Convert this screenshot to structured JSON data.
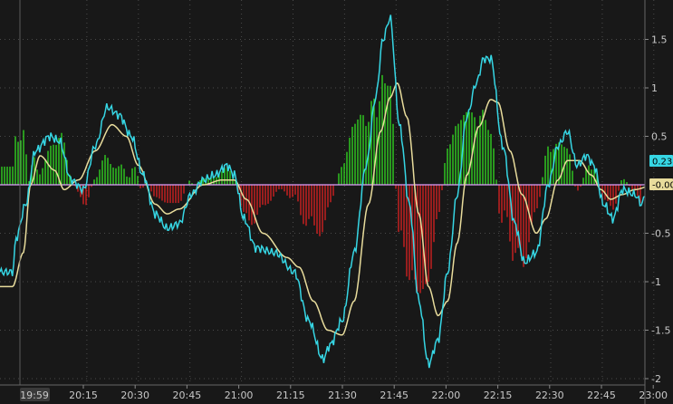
{
  "chart_data": {
    "type": "macd",
    "x_tick_labels": [
      "19:59",
      "20:15",
      "20:30",
      "20:45",
      "21:00",
      "21:15",
      "21:30",
      "21:45",
      "22:00",
      "22:15",
      "22:30",
      "22:45",
      "23:00"
    ],
    "y_tick_labels": [
      "1.5",
      "1",
      "0.5",
      "0",
      "-0.5",
      "-1",
      "-1.5",
      "-2"
    ],
    "ylim": [
      -2.1,
      1.75
    ],
    "grid": true,
    "colors": {
      "background": "#181818",
      "macd_line": "#36d6e4",
      "signal_line": "#e8dc9c",
      "histogram_positive": "#33dd22",
      "histogram_negative": "#dd2222",
      "zero_line": "#e0a0ff",
      "grid": "#4a4a4a"
    },
    "badges": [
      {
        "label": "0.23",
        "value": 0.23,
        "color": "#36d6e4",
        "text_color": "#000000"
      },
      {
        "label": "-0.00",
        "value": 0.0,
        "color": "#e8dc9c",
        "text_color": "#000000"
      }
    ],
    "macd_keypoints": [
      [
        -0.95,
        -0.9
      ],
      [
        -0.8,
        -0.55
      ],
      [
        -0.4,
        -0.2
      ],
      [
        0.0,
        0.35
      ],
      [
        0.6,
        0.5
      ],
      [
        1.0,
        0.45
      ],
      [
        1.5,
        0.05
      ],
      [
        2.0,
        -0.05
      ],
      [
        2.5,
        0.4
      ],
      [
        3.0,
        0.8
      ],
      [
        3.5,
        0.72
      ],
      [
        4.0,
        0.5
      ],
      [
        4.5,
        0.1
      ],
      [
        5.0,
        -0.3
      ],
      [
        5.5,
        -0.45
      ],
      [
        6.0,
        -0.4
      ],
      [
        6.5,
        -0.1
      ],
      [
        7.0,
        0.05
      ],
      [
        7.5,
        0.1
      ],
      [
        8.0,
        0.2
      ],
      [
        8.3,
        0.1
      ],
      [
        8.7,
        -0.35
      ],
      [
        9.2,
        -0.65
      ],
      [
        10.0,
        -0.7
      ],
      [
        10.8,
        -0.9
      ],
      [
        11.4,
        -1.4
      ],
      [
        12.0,
        -1.8
      ],
      [
        12.3,
        -1.65
      ],
      [
        12.8,
        -1.4
      ],
      [
        13.3,
        -0.7
      ],
      [
        13.8,
        0.2
      ],
      [
        14.2,
        0.9
      ],
      [
        14.5,
        1.5
      ],
      [
        14.8,
        1.72
      ],
      [
        15.2,
        0.6
      ],
      [
        15.6,
        -0.2
      ],
      [
        16.0,
        -1.2
      ],
      [
        16.4,
        -1.85
      ],
      [
        16.8,
        -1.6
      ],
      [
        17.2,
        -0.9
      ],
      [
        17.6,
        -0.1
      ],
      [
        18.0,
        0.7
      ],
      [
        18.4,
        1.05
      ],
      [
        18.7,
        1.3
      ],
      [
        19.0,
        1.3
      ],
      [
        19.5,
        0.4
      ],
      [
        20.0,
        -0.4
      ],
      [
        20.4,
        -0.8
      ],
      [
        20.9,
        -0.7
      ],
      [
        21.4,
        0.0
      ],
      [
        21.8,
        0.4
      ],
      [
        22.2,
        0.55
      ],
      [
        22.6,
        0.2
      ],
      [
        23.0,
        0.3
      ],
      [
        23.3,
        0.2
      ],
      [
        23.7,
        -0.2
      ],
      [
        24.1,
        -0.35
      ],
      [
        24.5,
        -0.05
      ],
      [
        25.0,
        -0.1
      ],
      [
        25.3,
        -0.2
      ],
      [
        25.6,
        0.1
      ],
      [
        25.8,
        0.23
      ]
    ],
    "signal_keypoints": [
      [
        -0.95,
        -1.05
      ],
      [
        -0.5,
        -0.7
      ],
      [
        -0.2,
        0.0
      ],
      [
        0.2,
        0.3
      ],
      [
        0.8,
        0.15
      ],
      [
        1.2,
        -0.05
      ],
      [
        1.8,
        0.05
      ],
      [
        2.5,
        0.35
      ],
      [
        3.2,
        0.62
      ],
      [
        3.8,
        0.5
      ],
      [
        4.3,
        0.2
      ],
      [
        5.0,
        -0.2
      ],
      [
        5.5,
        -0.3
      ],
      [
        6.0,
        -0.25
      ],
      [
        7.0,
        0.0
      ],
      [
        7.8,
        0.05
      ],
      [
        8.3,
        0.05
      ],
      [
        8.8,
        -0.15
      ],
      [
        9.5,
        -0.5
      ],
      [
        10.5,
        -0.75
      ],
      [
        11.0,
        -0.85
      ],
      [
        11.6,
        -1.2
      ],
      [
        12.2,
        -1.5
      ],
      [
        12.8,
        -1.55
      ],
      [
        13.3,
        -1.2
      ],
      [
        13.9,
        -0.2
      ],
      [
        14.4,
        0.55
      ],
      [
        14.8,
        0.9
      ],
      [
        15.1,
        1.05
      ],
      [
        15.5,
        0.7
      ],
      [
        16.0,
        -0.3
      ],
      [
        16.4,
        -1.05
      ],
      [
        16.8,
        -1.35
      ],
      [
        17.2,
        -1.2
      ],
      [
        17.6,
        -0.6
      ],
      [
        18.0,
        0.1
      ],
      [
        18.5,
        0.6
      ],
      [
        19.0,
        0.88
      ],
      [
        19.3,
        0.85
      ],
      [
        19.8,
        0.35
      ],
      [
        20.3,
        -0.1
      ],
      [
        20.9,
        -0.5
      ],
      [
        21.3,
        -0.35
      ],
      [
        21.8,
        0.05
      ],
      [
        22.2,
        0.25
      ],
      [
        22.7,
        0.25
      ],
      [
        23.2,
        0.1
      ],
      [
        23.6,
        -0.05
      ],
      [
        24.0,
        -0.15
      ],
      [
        24.5,
        -0.1
      ],
      [
        25.0,
        -0.05
      ],
      [
        25.8,
        -0.0
      ]
    ]
  }
}
